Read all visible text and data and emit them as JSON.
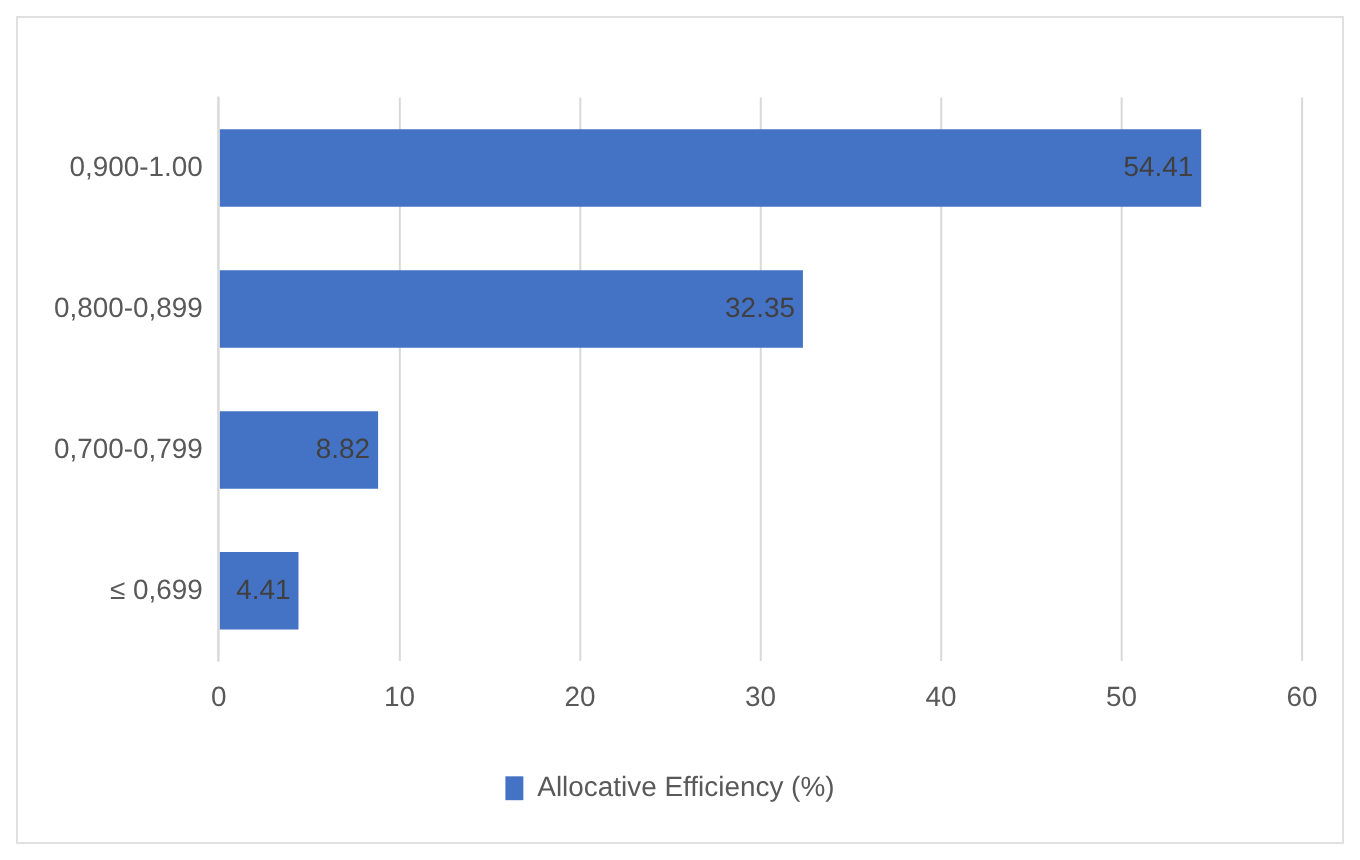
{
  "chart_data": {
    "type": "bar",
    "orientation": "horizontal",
    "categories": [
      "0,900-1.00",
      "0,800-0,899",
      "0,700-0,799",
      "≤ 0,699"
    ],
    "series": [
      {
        "name": "Allocative Efficiency (%)",
        "color": "#4472c4",
        "values": [
          54.41,
          32.35,
          8.82,
          4.41
        ]
      }
    ],
    "xlim": [
      0,
      60
    ],
    "xticks": [
      0,
      10,
      20,
      30,
      40,
      50,
      60
    ],
    "grid": "x",
    "legend": "bottom",
    "data_labels": true
  }
}
